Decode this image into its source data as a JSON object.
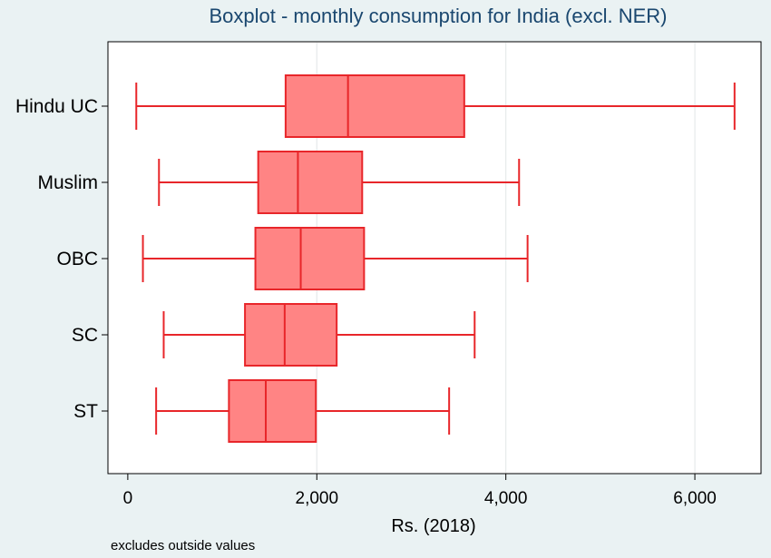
{
  "chart_data": {
    "type": "boxplot",
    "orientation": "horizontal",
    "title": "Boxplot - monthly consumption for India (excl. NER)",
    "xlabel": "Rs. (2018)",
    "ylabel": "",
    "xlim": [
      -210,
      6700
    ],
    "xticks": [
      0,
      2000,
      4000,
      6000
    ],
    "xtick_labels": [
      "0",
      "2,000",
      "4,000",
      "6,000"
    ],
    "grid": true,
    "note": "excludes outside values",
    "categories": [
      "Hindu UC",
      "Muslim",
      "OBC",
      "SC",
      "ST"
    ],
    "boxes": [
      {
        "name": "Hindu UC",
        "whisker_low": 90,
        "q1": 1670,
        "median": 2330,
        "q3": 3560,
        "whisker_high": 6420
      },
      {
        "name": "Muslim",
        "whisker_low": 330,
        "q1": 1380,
        "median": 1800,
        "q3": 2480,
        "whisker_high": 4140
      },
      {
        "name": "OBC",
        "whisker_low": 160,
        "q1": 1350,
        "median": 1830,
        "q3": 2500,
        "whisker_high": 4230
      },
      {
        "name": "SC",
        "whisker_low": 380,
        "q1": 1240,
        "median": 1660,
        "q3": 2210,
        "whisker_high": 3670
      },
      {
        "name": "ST",
        "whisker_low": 300,
        "q1": 1070,
        "median": 1460,
        "q3": 1990,
        "whisker_high": 3400
      }
    ],
    "colors": {
      "box_fill": "#ff8484",
      "box_stroke": "#e8262a",
      "plot_background": "#ffffff",
      "page_background": "#eaf2f3",
      "grid": "#e6eaeb",
      "title": "#1a476f"
    }
  }
}
